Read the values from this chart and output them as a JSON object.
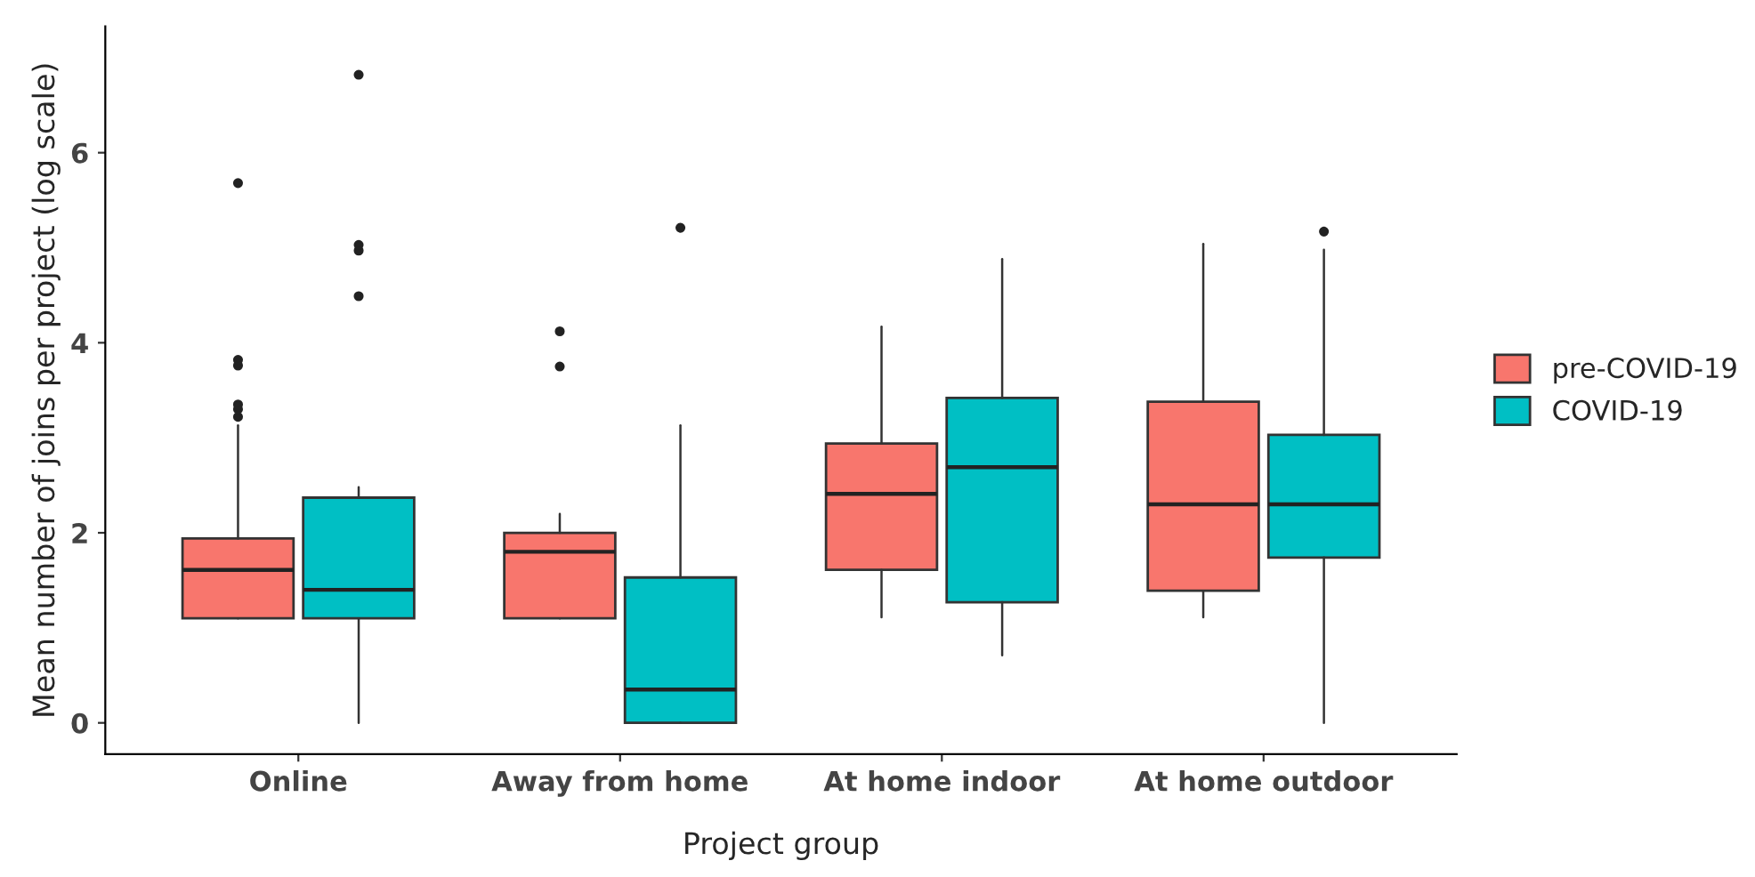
{
  "chart_data": {
    "type": "box",
    "xlabel": "Project group",
    "ylabel": "Mean number of joins per project (log scale)",
    "categories": [
      "Online",
      "Away from home",
      "At home indoor",
      "At home outdoor"
    ],
    "ylim": [
      -0.33,
      7.33
    ],
    "yticks": [
      0,
      2,
      4,
      6
    ],
    "grid": false,
    "legend": "right",
    "series": [
      {
        "name": "pre-COVID-19",
        "color": "#f8766d",
        "boxes": [
          {
            "low": 1.1,
            "q1": 1.1,
            "median": 1.61,
            "q3": 1.94,
            "high": 3.13,
            "outliers": [
              3.22,
              3.3,
              3.35,
              3.76,
              3.82,
              5.68
            ]
          },
          {
            "low": 1.1,
            "q1": 1.1,
            "median": 1.8,
            "q3": 2.0,
            "high": 2.2,
            "outliers": [
              3.75,
              4.12
            ]
          },
          {
            "low": 1.11,
            "q1": 1.61,
            "median": 2.41,
            "q3": 2.94,
            "high": 4.17
          },
          {
            "low": 1.11,
            "q1": 1.39,
            "median": 2.3,
            "q3": 3.38,
            "high": 5.04
          }
        ]
      },
      {
        "name": "COVID-19",
        "color": "#00bfc4",
        "boxes": [
          {
            "low": 0,
            "q1": 1.1,
            "median": 1.4,
            "q3": 2.37,
            "high": 2.48,
            "outliers": [
              4.49,
              4.97,
              5.03,
              6.82
            ]
          },
          {
            "low": 0,
            "q1": 0,
            "median": 0.35,
            "q3": 1.53,
            "high": 3.13,
            "outliers": [
              5.21
            ]
          },
          {
            "low": 0.71,
            "q1": 1.27,
            "median": 2.69,
            "q3": 3.42,
            "high": 4.88
          },
          {
            "low": 0,
            "q1": 1.74,
            "median": 2.3,
            "q3": 3.03,
            "high": 4.98,
            "outliers": [
              5.17
            ]
          }
        ]
      }
    ]
  }
}
